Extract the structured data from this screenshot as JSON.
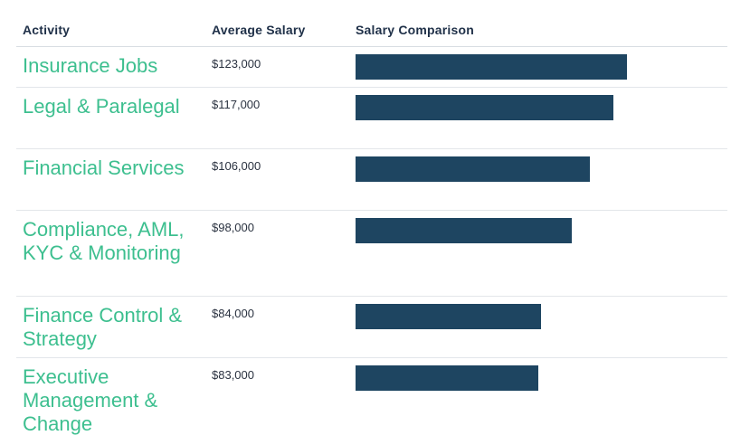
{
  "headers": {
    "activity": "Activity",
    "salary": "Average Salary",
    "comparison": "Salary Comparison"
  },
  "colors": {
    "bar": "#1e4561",
    "activity_text": "#3dbf8f",
    "header_text": "#1f3048"
  },
  "rows": [
    {
      "activity": "Insurance Jobs",
      "salary_label": "$123,000"
    },
    {
      "activity": "Legal & Paralegal",
      "salary_label": "$117,000"
    },
    {
      "activity": "Financial Services",
      "salary_label": "$106,000"
    },
    {
      "activity": "Compliance, AML, KYC & Monitoring",
      "salary_label": "$98,000"
    },
    {
      "activity": "Finance Control & Strategy",
      "salary_label": "$84,000"
    },
    {
      "activity": "Executive Management & Change",
      "salary_label": "$83,000"
    }
  ],
  "chart_data": {
    "type": "bar",
    "orientation": "horizontal",
    "categories": [
      "Insurance Jobs",
      "Legal & Paralegal",
      "Financial Services",
      "Compliance, AML, KYC & Monitoring",
      "Finance Control & Strategy",
      "Executive Management & Change"
    ],
    "values": [
      123000,
      117000,
      106000,
      98000,
      84000,
      83000
    ],
    "title": "",
    "xlabel": "",
    "ylabel": ""
  }
}
